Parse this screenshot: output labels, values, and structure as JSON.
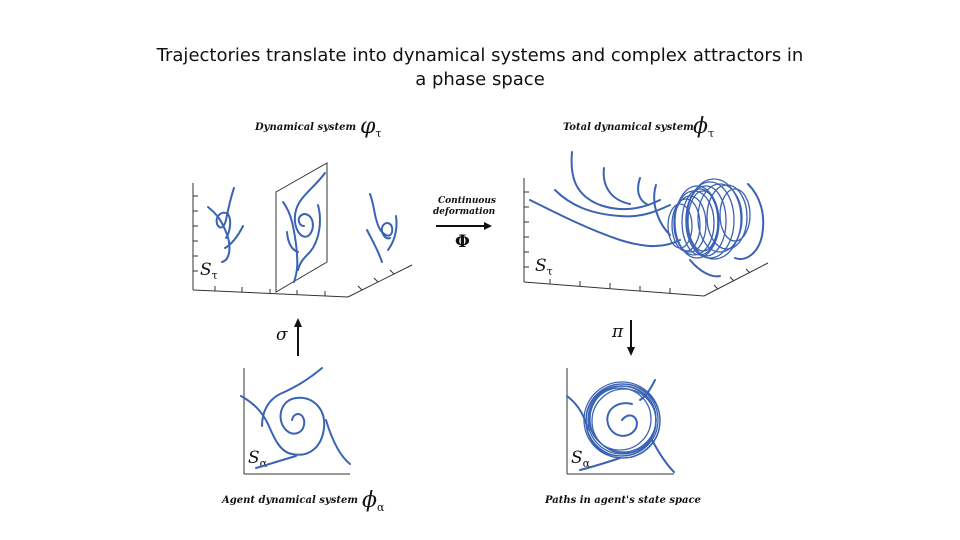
{
  "title": "Trajectories translate into dynamical systems and complex attractors in a phase space",
  "panels": {
    "top_left": {
      "label": "Dynamical system",
      "symbol": "φ",
      "symbol_sub": "τ",
      "axis_label": "S",
      "axis_sub": "τ"
    },
    "top_right": {
      "label": "Total dynamical system",
      "symbol": "ϕ",
      "symbol_sub": "τ",
      "axis_label": "S",
      "axis_sub": "τ"
    },
    "bottom_left": {
      "label": "Agent dynamical system",
      "symbol": "ϕ",
      "symbol_sub": "α",
      "axis_label": "S",
      "axis_sub": "α"
    },
    "bottom_right": {
      "label": "Paths in agent's state space",
      "axis_label": "S",
      "axis_sub": "α"
    }
  },
  "arrows": {
    "deformation": {
      "line1": "Continuous",
      "line2": "deformation",
      "symbol": "Φ"
    },
    "sigma": {
      "symbol": "σ"
    },
    "pi": {
      "symbol": "π"
    }
  },
  "colors": {
    "trajectory": "#3b63b3",
    "axes": "#333333",
    "text": "#111111"
  }
}
